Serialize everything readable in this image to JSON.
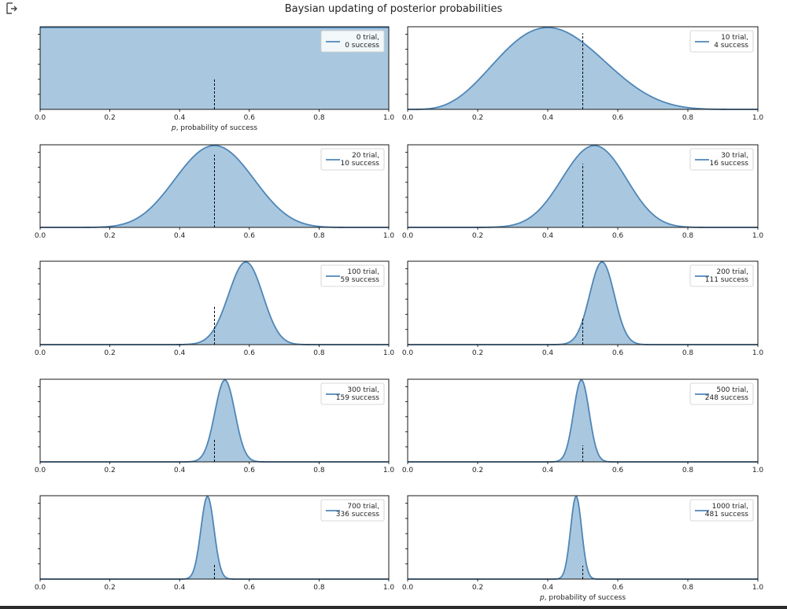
{
  "figure": {
    "title": "Baysian updating of posterior probabilities",
    "output_icon": "output-arrow-icon"
  },
  "colors": {
    "line": "#4f86b7",
    "fill": "#a9c8df",
    "axis": "#000000",
    "reference": "#000000"
  },
  "chart_data": [
    {
      "type": "area",
      "trials": 0,
      "successes": 0,
      "legend": [
        "0 trial,",
        "0 success"
      ],
      "xlabel": "p, probability of success",
      "xlim": [
        0,
        1
      ],
      "xticks": [
        "0.0",
        "0.2",
        "0.4",
        "0.6",
        "0.8",
        "1.0"
      ],
      "reference_x": 0.5,
      "reference_frac": 0.38,
      "grid": false,
      "legend_loc": "upper right"
    },
    {
      "type": "area",
      "trials": 10,
      "successes": 4,
      "legend": [
        "10 trial,",
        "4 success"
      ],
      "xlabel": "",
      "xlim": [
        0,
        1
      ],
      "xticks": [
        "0.0",
        "0.2",
        "0.4",
        "0.6",
        "0.8",
        "1.0"
      ],
      "reference_x": 0.5,
      "reference_frac": 0.92,
      "grid": false,
      "legend_loc": "upper right"
    },
    {
      "type": "area",
      "trials": 20,
      "successes": 10,
      "legend": [
        "20 trial,",
        "10 success"
      ],
      "xlabel": "",
      "xlim": [
        0,
        1
      ],
      "xticks": [
        "0.0",
        "0.2",
        "0.4",
        "0.6",
        "0.8",
        "1.0"
      ],
      "reference_x": 0.5,
      "reference_frac": 0.88,
      "grid": false,
      "legend_loc": "upper right"
    },
    {
      "type": "area",
      "trials": 30,
      "successes": 16,
      "legend": [
        "30 trial,",
        "16 success"
      ],
      "xlabel": "",
      "xlim": [
        0,
        1
      ],
      "xticks": [
        "0.0",
        "0.2",
        "0.4",
        "0.6",
        "0.8",
        "1.0"
      ],
      "reference_x": 0.5,
      "reference_frac": 0.77,
      "grid": false,
      "legend_loc": "upper right"
    },
    {
      "type": "area",
      "trials": 100,
      "successes": 59,
      "legend": [
        "100 trial,",
        "59 success"
      ],
      "xlabel": "",
      "xlim": [
        0,
        1
      ],
      "xticks": [
        "0.0",
        "0.2",
        "0.4",
        "0.6",
        "0.8",
        "1.0"
      ],
      "reference_x": 0.5,
      "reference_frac": 0.47,
      "grid": false,
      "legend_loc": "upper right"
    },
    {
      "type": "area",
      "trials": 200,
      "successes": 111,
      "legend": [
        "200 trial,",
        "111 success"
      ],
      "xlabel": "",
      "xlim": [
        0,
        1
      ],
      "xticks": [
        "0.0",
        "0.2",
        "0.4",
        "0.6",
        "0.8",
        "1.0"
      ],
      "reference_x": 0.5,
      "reference_frac": 0.33,
      "grid": false,
      "legend_loc": "upper right"
    },
    {
      "type": "area",
      "trials": 300,
      "successes": 159,
      "legend": [
        "300 trial,",
        "159 success"
      ],
      "xlabel": "",
      "xlim": [
        0,
        1
      ],
      "xticks": [
        "0.0",
        "0.2",
        "0.4",
        "0.6",
        "0.8",
        "1.0"
      ],
      "reference_x": 0.5,
      "reference_frac": 0.28,
      "grid": false,
      "legend_loc": "upper right"
    },
    {
      "type": "area",
      "trials": 500,
      "successes": 248,
      "legend": [
        "500 trial,",
        "248 success"
      ],
      "xlabel": "",
      "xlim": [
        0,
        1
      ],
      "xticks": [
        "0.0",
        "0.2",
        "0.4",
        "0.6",
        "0.8",
        "1.0"
      ],
      "reference_x": 0.5,
      "reference_frac": 0.2,
      "grid": false,
      "legend_loc": "upper right"
    },
    {
      "type": "area",
      "trials": 700,
      "successes": 336,
      "legend": [
        "700 trial,",
        "336 success"
      ],
      "xlabel": "",
      "xlim": [
        0,
        1
      ],
      "xticks": [
        "0.0",
        "0.2",
        "0.4",
        "0.6",
        "0.8",
        "1.0"
      ],
      "reference_x": 0.5,
      "reference_frac": 0.18,
      "grid": false,
      "legend_loc": "upper right"
    },
    {
      "type": "area",
      "trials": 1000,
      "successes": 481,
      "legend": [
        "1000 trial,",
        "481 success"
      ],
      "xlabel": "p, probability of success",
      "xlim": [
        0,
        1
      ],
      "xticks": [
        "0.0",
        "0.2",
        "0.4",
        "0.6",
        "0.8",
        "1.0"
      ],
      "reference_x": 0.5,
      "reference_frac": 0.16,
      "grid": false,
      "legend_loc": "upper right"
    }
  ]
}
